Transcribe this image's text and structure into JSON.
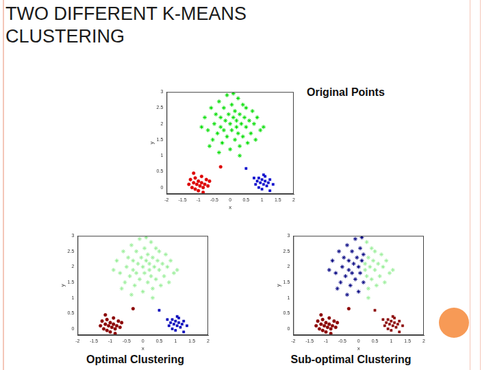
{
  "header": {
    "title": "TWO DIFFERENT K-MEANS CLUSTERING"
  },
  "chart_data": [
    {
      "type": "scatter",
      "title": "Original Points",
      "x_label": "x",
      "y_label": "y",
      "xlim": [
        -2,
        2
      ],
      "ylim": [
        -0.2,
        3
      ],
      "xticks": [
        -2,
        -1.5,
        -1,
        -0.5,
        0,
        0.5,
        1,
        1.5,
        2
      ],
      "yticks": [
        0,
        0.5,
        1,
        1.5,
        2,
        2.5,
        3
      ],
      "grid": false,
      "series": [
        {
          "color": "#00dd00",
          "marker": "star",
          "x": [
            -0.8,
            -0.7,
            -0.6,
            -0.55,
            -0.5,
            -0.45,
            -0.4,
            -0.35,
            -0.3,
            -0.3,
            -0.25,
            -0.2,
            -0.2,
            -0.15,
            -0.1,
            -0.1,
            -0.05,
            0,
            0,
            0.05,
            0.05,
            0.1,
            0.1,
            0.15,
            0.15,
            -0.65,
            -0.9,
            -0.35,
            0.2,
            0.2,
            0.25,
            0.25,
            0.3,
            0.3,
            0.35,
            0.4,
            0.4,
            0.45,
            0.5,
            0.5,
            0.55,
            0.6,
            0.65,
            0.7,
            0.75,
            0.8,
            0.85,
            0.95,
            1.05,
            0.3
          ],
          "values": [
            2.2,
            1.8,
            2.5,
            1.5,
            2,
            2.3,
            1.7,
            2.7,
            1.9,
            2.2,
            1.4,
            2.5,
            1.8,
            2.1,
            2.9,
            1.6,
            2.3,
            2,
            1.2,
            2.6,
            1.8,
            2.2,
            2.95,
            1.5,
            2.4,
            1.3,
            1.9,
            1.1,
            1.9,
            2.1,
            2.8,
            1.7,
            2.3,
            1.3,
            2,
            2.6,
            1.6,
            2.2,
            1.9,
            2.5,
            1.4,
            2.1,
            1.7,
            2.4,
            2,
            1.5,
            2.2,
            1.8,
            1.9,
            1
          ]
        },
        {
          "color": "#dd0000",
          "marker": "circle",
          "x": [
            -1.3,
            -1.25,
            -1.2,
            -1.15,
            -1.1,
            -1.1,
            -1.05,
            -1,
            -1,
            -0.95,
            -0.9,
            -0.9,
            -0.85,
            -0.8,
            -0.75,
            -0.7,
            -0.65,
            -1.15,
            -0.85,
            -0.3
          ],
          "values": [
            0.1,
            0.25,
            0,
            0.15,
            -0.05,
            0.3,
            0.1,
            0.2,
            -0.1,
            0.05,
            0.15,
            0.35,
            0,
            0.1,
            0.25,
            0.05,
            0.2,
            0.45,
            -0.15,
            0.65
          ]
        },
        {
          "color": "#0000cc",
          "marker": "square",
          "x": [
            0.75,
            0.8,
            0.85,
            0.9,
            0.9,
            0.95,
            1,
            1,
            1.05,
            1.1,
            1.1,
            1.15,
            1.2,
            1.25,
            1.25,
            1.35,
            1.05,
            0.5
          ],
          "values": [
            0.3,
            0.1,
            0.2,
            0,
            0.3,
            0.15,
            0.25,
            -0.05,
            0.1,
            0.2,
            0.35,
            0.05,
            0.15,
            0.25,
            -0.1,
            0.1,
            0.4,
            0.6
          ]
        }
      ]
    },
    {
      "type": "scatter",
      "title": "Optimal Clustering",
      "x_label": "x",
      "y_label": "y",
      "xlim": [
        -2,
        2
      ],
      "ylim": [
        -0.2,
        3
      ],
      "xticks": [
        -2,
        -1.5,
        -1,
        -0.5,
        0,
        0.5,
        1,
        1.5,
        2
      ],
      "yticks": [
        0,
        0.5,
        1,
        1.5,
        2,
        2.5,
        3
      ],
      "grid": false,
      "series": [
        {
          "color": "#99ee99",
          "marker": "star",
          "x": [
            -0.8,
            -0.7,
            -0.6,
            -0.55,
            -0.5,
            -0.45,
            -0.4,
            -0.35,
            -0.3,
            -0.3,
            -0.25,
            -0.2,
            -0.2,
            -0.15,
            -0.1,
            -0.1,
            -0.05,
            0,
            0,
            0.05,
            0.05,
            0.1,
            0.1,
            0.15,
            0.15,
            -0.65,
            -0.9,
            -0.35,
            0.2,
            0.2,
            0.25,
            0.25,
            0.3,
            0.3,
            0.35,
            0.4,
            0.4,
            0.45,
            0.5,
            0.5,
            0.55,
            0.6,
            0.65,
            0.7,
            0.75,
            0.8,
            0.85,
            0.95,
            1.05,
            0.3
          ],
          "values": [
            2.2,
            1.8,
            2.5,
            1.5,
            2,
            2.3,
            1.7,
            2.7,
            1.9,
            2.2,
            1.4,
            2.5,
            1.8,
            2.1,
            2.9,
            1.6,
            2.3,
            2,
            1.2,
            2.6,
            1.8,
            2.2,
            2.95,
            1.5,
            2.4,
            1.3,
            1.9,
            1.1,
            1.9,
            2.1,
            2.8,
            1.7,
            2.3,
            1.3,
            2,
            2.6,
            1.6,
            2.2,
            1.9,
            2.5,
            1.4,
            2.1,
            1.7,
            2.4,
            2,
            1.5,
            2.2,
            1.8,
            1.9,
            1
          ]
        },
        {
          "color": "#8b0000",
          "marker": "circle",
          "x": [
            -1.3,
            -1.25,
            -1.2,
            -1.15,
            -1.1,
            -1.1,
            -1.05,
            -1,
            -1,
            -0.95,
            -0.9,
            -0.9,
            -0.85,
            -0.8,
            -0.75,
            -0.7,
            -0.65,
            -1.15,
            -0.85,
            -0.3
          ],
          "values": [
            0.1,
            0.25,
            0,
            0.15,
            -0.05,
            0.3,
            0.1,
            0.2,
            -0.1,
            0.05,
            0.15,
            0.35,
            0,
            0.1,
            0.25,
            0.05,
            0.2,
            0.45,
            -0.15,
            0.65
          ]
        },
        {
          "color": "#0000bb",
          "marker": "square",
          "x": [
            0.75,
            0.8,
            0.85,
            0.9,
            0.9,
            0.95,
            1,
            1,
            1.05,
            1.1,
            1.1,
            1.15,
            1.2,
            1.25,
            1.25,
            1.35,
            1.05,
            0.5
          ],
          "values": [
            0.3,
            0.1,
            0.2,
            0,
            0.3,
            0.15,
            0.25,
            -0.05,
            0.1,
            0.2,
            0.35,
            0.05,
            0.15,
            0.25,
            -0.1,
            0.1,
            0.4,
            0.6
          ]
        }
      ]
    },
    {
      "type": "scatter",
      "title": "Sub-optimal Clustering",
      "x_label": "x",
      "y_label": "y",
      "xlim": [
        -2,
        2
      ],
      "ylim": [
        -0.2,
        3
      ],
      "xticks": [
        -2,
        -1.5,
        -1,
        -0.5,
        0,
        0.5,
        1,
        1.5,
        2
      ],
      "yticks": [
        0,
        0.5,
        1,
        1.5,
        2,
        2.5,
        3
      ],
      "grid": false,
      "series": [
        {
          "color": "#000080",
          "marker": "star",
          "x": [
            -0.8,
            -0.7,
            -0.6,
            -0.55,
            -0.5,
            -0.45,
            -0.4,
            -0.35,
            -0.3,
            -0.3,
            -0.25,
            -0.2,
            -0.2,
            -0.15,
            -0.1,
            -0.1,
            -0.05,
            0,
            0,
            0.05,
            0.05,
            0.1,
            0.1,
            0.15,
            0.15,
            -0.65,
            -0.9,
            -0.35
          ],
          "values": [
            2.2,
            1.8,
            2.5,
            1.5,
            2,
            2.3,
            1.7,
            2.7,
            1.9,
            2.2,
            1.4,
            2.5,
            1.8,
            2.1,
            2.9,
            1.6,
            2.3,
            2,
            1.2,
            2.6,
            1.8,
            2.2,
            2.95,
            1.5,
            2.4,
            1.3,
            1.9,
            1.1
          ]
        },
        {
          "color": "#99ee99",
          "marker": "star",
          "x": [
            0.2,
            0.2,
            0.25,
            0.25,
            0.3,
            0.3,
            0.35,
            0.4,
            0.4,
            0.45,
            0.5,
            0.5,
            0.55,
            0.6,
            0.65,
            0.7,
            0.75,
            0.8,
            0.85,
            0.95,
            1.05,
            0.3
          ],
          "values": [
            1.9,
            2.1,
            2.8,
            1.7,
            2.3,
            1.3,
            2,
            2.6,
            1.6,
            2.2,
            1.9,
            2.5,
            1.4,
            2.1,
            1.7,
            2.4,
            2,
            1.5,
            2.2,
            1.8,
            1.9,
            1
          ]
        },
        {
          "color": "#8b0000",
          "marker": "circle",
          "x": [
            -1.3,
            -1.25,
            -1.2,
            -1.15,
            -1.1,
            -1.1,
            -1.05,
            -1,
            -1,
            -0.95,
            -0.9,
            -0.9,
            -0.85,
            -0.8,
            -0.75,
            -0.7,
            -0.65,
            -1.15,
            -0.85,
            -0.3
          ],
          "values": [
            0.1,
            0.25,
            0,
            0.15,
            -0.05,
            0.3,
            0.1,
            0.2,
            -0.1,
            0.05,
            0.15,
            0.35,
            0,
            0.1,
            0.25,
            0.05,
            0.2,
            0.45,
            -0.15,
            0.65
          ]
        },
        {
          "color": "#8b0000",
          "marker": "square",
          "x": [
            0.75,
            0.8,
            0.85,
            0.9,
            0.9,
            0.95,
            1,
            1,
            1.05,
            1.1,
            1.1,
            1.15,
            1.2,
            1.25,
            1.25,
            1.35,
            1.05,
            0.5
          ],
          "values": [
            0.3,
            0.1,
            0.2,
            0,
            0.3,
            0.15,
            0.25,
            -0.05,
            0.1,
            0.2,
            0.35,
            0.05,
            0.15,
            0.25,
            -0.1,
            0.1,
            0.4,
            0.6
          ]
        }
      ]
    }
  ]
}
